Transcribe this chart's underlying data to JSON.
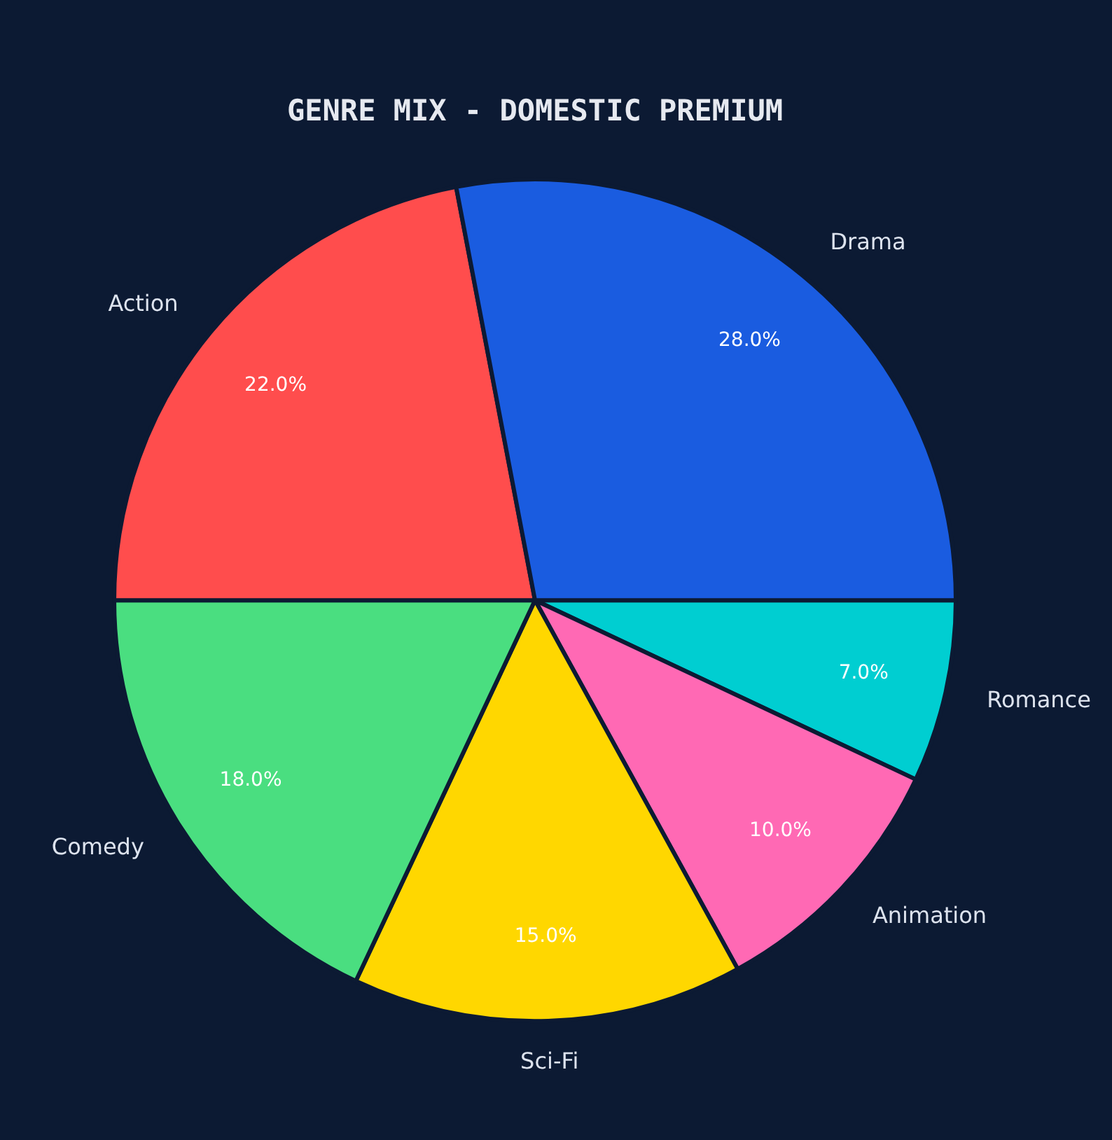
{
  "chart_data": {
    "type": "pie",
    "title": "GENRE MIX - DOMESTIC PREMIUM",
    "categories": [
      "Drama",
      "Action",
      "Comedy",
      "Sci-Fi",
      "Animation",
      "Romance"
    ],
    "values": [
      28,
      22,
      18,
      15,
      10,
      7
    ],
    "colors": [
      "#1a5ce0",
      "#ff4d4d",
      "#4ade80",
      "#ffd700",
      "#ff69b4",
      "#00ced1"
    ],
    "value_labels": [
      "28.0%",
      "22.0%",
      "18.0%",
      "15.0%",
      "10.0%",
      "7.0%"
    ],
    "legend": false
  }
}
